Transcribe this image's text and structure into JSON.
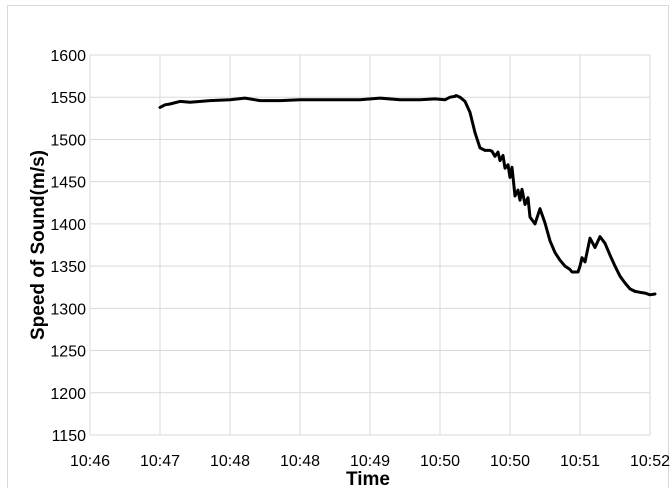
{
  "chart_data": {
    "type": "line",
    "title": "",
    "xlabel": "Time",
    "ylabel": "Speed of Sound(m/s)",
    "x_tick_labels": [
      "10:46",
      "10:47",
      "10:48",
      "10:48",
      "10:49",
      "10:50",
      "10:50",
      "10:51",
      "10:52"
    ],
    "y_ticks": [
      1150,
      1200,
      1250,
      1300,
      1350,
      1400,
      1450,
      1500,
      1550,
      1600
    ],
    "ylim": [
      1150,
      1600
    ],
    "xlim_minutes": [
      0,
      5.6
    ],
    "grid": true,
    "legend": "none",
    "line_color": "#000000",
    "grid_color": "#d9d9d9",
    "series": [
      {
        "x_minutes": [
          0.7,
          0.75,
          0.8,
          0.9,
          1.0,
          1.2,
          1.4,
          1.55,
          1.7,
          1.9,
          2.1,
          2.3,
          2.5,
          2.7,
          2.9,
          3.1,
          3.3,
          3.45,
          3.55,
          3.6,
          3.65,
          3.66,
          3.7,
          3.75,
          3.8,
          3.85,
          3.9,
          3.95,
          4.0,
          4.02,
          4.05,
          4.08,
          4.1,
          4.13,
          4.15,
          4.18,
          4.2,
          4.22,
          4.25,
          4.28,
          4.3,
          4.32,
          4.35,
          4.38,
          4.4,
          4.45,
          4.5,
          4.55,
          4.6,
          4.65,
          4.7,
          4.75,
          4.8,
          4.82,
          4.85,
          4.88,
          4.9,
          4.92,
          4.95,
          5.0,
          5.05,
          5.1,
          5.15,
          5.2,
          5.25,
          5.3,
          5.35,
          5.4,
          5.45,
          5.5,
          5.55,
          5.6,
          5.65
        ],
        "values": [
          1538,
          1541,
          1542,
          1545,
          1544,
          1546,
          1547,
          1549,
          1546,
          1546,
          1547,
          1547,
          1547,
          1547,
          1549,
          1547,
          1547,
          1548,
          1547,
          1550,
          1551,
          1552,
          1550,
          1545,
          1532,
          1508,
          1490,
          1487,
          1487,
          1486,
          1480,
          1485,
          1475,
          1481,
          1466,
          1470,
          1455,
          1467,
          1433,
          1440,
          1428,
          1441,
          1423,
          1431,
          1408,
          1400,
          1418,
          1401,
          1380,
          1366,
          1357,
          1350,
          1346,
          1343,
          1343,
          1343,
          1350,
          1360,
          1355,
          1383,
          1372,
          1385,
          1377,
          1363,
          1350,
          1338,
          1330,
          1323,
          1320,
          1319,
          1318,
          1316,
          1317
        ]
      }
    ]
  }
}
